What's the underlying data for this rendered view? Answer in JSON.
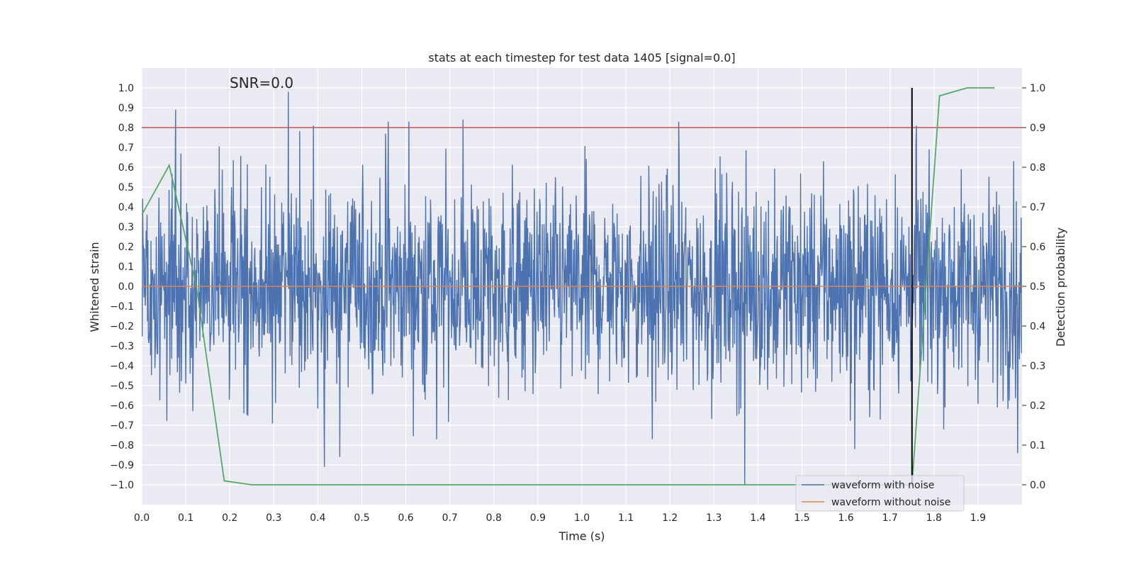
{
  "chart_data": {
    "type": "line",
    "title": "stats at each timestep for test data 1405 [signal=0.0]",
    "xlabel": "Time (s)",
    "ylabel": "Whitened strain",
    "y2label": "Detection probability",
    "xlim": [
      0.0,
      2.0
    ],
    "ylim": [
      -1.1,
      1.1
    ],
    "y2lim": [
      -0.05,
      1.05
    ],
    "x_ticks": [
      0.0,
      0.1,
      0.2,
      0.3,
      0.4,
      0.5,
      0.6,
      0.7,
      0.8,
      0.9,
      1.0,
      1.1,
      1.2,
      1.3,
      1.4,
      1.5,
      1.6,
      1.7,
      1.8,
      1.9
    ],
    "x_tick_labels": [
      "0.0",
      "0.1",
      "0.2",
      "0.3",
      "0.4",
      "0.5",
      "0.6",
      "0.7",
      "0.8",
      "0.9",
      "1.0",
      "1.1",
      "1.2",
      "1.3",
      "1.4",
      "1.5",
      "1.6",
      "1.7",
      "1.8",
      "1.9"
    ],
    "y_ticks": [
      1.0,
      0.9,
      0.8,
      0.7,
      0.6,
      0.5,
      0.4,
      0.3,
      0.2,
      0.1,
      0.0,
      -0.1,
      -0.2,
      -0.3,
      -0.4,
      -0.5,
      -0.6,
      -0.7,
      -0.8,
      -0.9,
      -1.0
    ],
    "y_tick_labels": [
      "1.0",
      "0.9",
      "0.8",
      "0.7",
      "0.6",
      "0.5",
      "0.4",
      "0.3",
      "0.2",
      "0.1",
      "0.0",
      "−0.1",
      "−0.2",
      "−0.3",
      "−0.4",
      "−0.5",
      "−0.6",
      "−0.7",
      "−0.8",
      "−0.9",
      "−1.0"
    ],
    "y2_ticks": [
      1.0,
      0.9,
      0.8,
      0.7,
      0.6,
      0.5,
      0.4,
      0.3,
      0.2,
      0.1,
      0.0
    ],
    "y2_tick_labels": [
      "1.0",
      "0.9",
      "0.8",
      "0.7",
      "0.6",
      "0.5",
      "0.4",
      "0.3",
      "0.2",
      "0.1",
      "0.0"
    ],
    "annotation": "SNR=0.0",
    "grid": true,
    "series": [
      {
        "name": "waveform with noise",
        "axis": "left",
        "color": "#4c72b0",
        "kind": "noise",
        "samples": 2000,
        "x_range": [
          0.0,
          1.999
        ],
        "amplitude_range": [
          -1.0,
          0.98
        ],
        "peaks": [
          {
            "x": 0.077,
            "y": 0.89
          },
          {
            "x": 0.333,
            "y": 0.98
          },
          {
            "x": 0.39,
            "y": 0.81
          },
          {
            "x": 0.56,
            "y": 0.83
          },
          {
            "x": 0.607,
            "y": 0.83
          },
          {
            "x": 0.73,
            "y": 0.84
          },
          {
            "x": 1.22,
            "y": 0.83
          },
          {
            "x": 1.76,
            "y": 0.81
          },
          {
            "x": 1.37,
            "y": -1.0
          },
          {
            "x": 0.415,
            "y": -0.91
          },
          {
            "x": 0.45,
            "y": -0.86
          },
          {
            "x": 1.62,
            "y": -0.82
          },
          {
            "x": 1.99,
            "y": -0.84
          },
          {
            "x": 0.67,
            "y": -0.77
          },
          {
            "x": 1.16,
            "y": -0.77
          }
        ]
      },
      {
        "name": "waveform without noise",
        "axis": "left",
        "color": "#dd8452",
        "x": [
          0.0,
          1.999
        ],
        "y": [
          0.0,
          0.0
        ]
      },
      {
        "name": "detection probability",
        "axis": "right",
        "color": "#55a868",
        "x": [
          0.0,
          0.0625,
          0.125,
          0.1875,
          0.25,
          0.3125,
          0.375,
          0.4375,
          0.5,
          0.5625,
          0.625,
          0.6875,
          0.75,
          0.8125,
          0.875,
          0.9375,
          1.0,
          1.0625,
          1.125,
          1.1875,
          1.25,
          1.3125,
          1.375,
          1.4375,
          1.5,
          1.5625,
          1.625,
          1.6875,
          1.75,
          1.8125,
          1.875,
          1.9375
        ],
        "y": [
          0.68,
          0.805,
          0.495,
          0.01,
          0.0,
          0.0,
          0.0,
          0.0,
          0.0,
          0.0,
          0.0,
          0.0,
          0.0,
          0.0,
          0.0,
          0.0,
          0.0,
          0.0,
          0.0,
          0.0,
          0.0,
          0.0,
          0.0,
          0.0,
          0.0,
          0.0,
          0.0,
          0.0,
          0.0,
          0.98,
          1.0,
          1.0
        ]
      }
    ],
    "threshold_line": {
      "axis": "right",
      "value": 0.9,
      "color": "#c44e52"
    },
    "vertical_marker": {
      "x": 1.75,
      "y2_range": [
        0.0,
        1.0
      ],
      "color": "#000000"
    },
    "legend": {
      "position": "lower-right",
      "entries": [
        {
          "label": "waveform with noise",
          "color": "#4c72b0"
        },
        {
          "label": "waveform without noise",
          "color": "#dd8452"
        }
      ]
    }
  },
  "colors": {
    "plot_background": "#eaeaf2",
    "grid": "#ffffff",
    "noise": "#4c72b0",
    "clean": "#dd8452",
    "probability": "#55a868",
    "threshold": "#c44e52",
    "marker": "#000000"
  }
}
